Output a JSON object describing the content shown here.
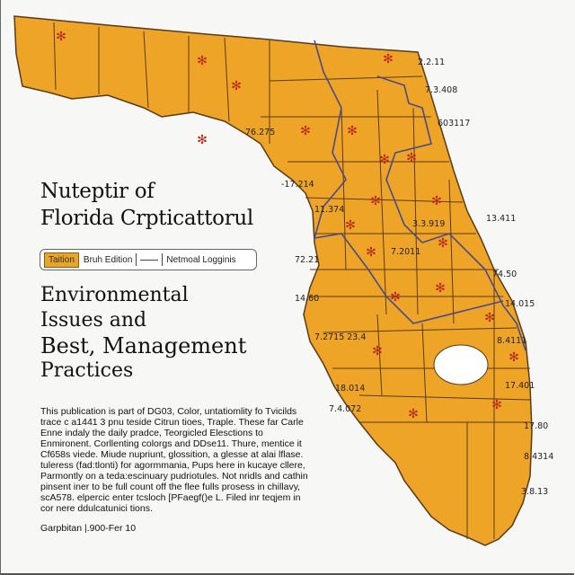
{
  "title": {
    "line1": "Nuteptir of",
    "line2": "Florida Crpticattorul"
  },
  "edition_bar": {
    "tag": "Taition",
    "edition": "Bruh Edition",
    "series": "Netmoal Logginis"
  },
  "subtitle": {
    "line1": "Environmental",
    "line2": "Issues and",
    "line3": "Best, Management",
    "line4": "Practices"
  },
  "body_text": "This publication is part of DG03, Color, untatiomlity fo Tvicilds trace c a1441 3 pnu teside Citrun tioes, Traple. These far Carle Enne indaly the daily pradce, Teorgicled Elesctions to Enmironent. Corllenting colorgs and DDse11. Thure, mentice it Cf658s viede. Miude nupriunt, glossition, a glesse at alai lflase. tuleress (fad:tlonti) for agormmania, Pups here in kucaye cllere, Parmontly on a teda:escinuary pudriotules. Not nridls and cathin pinsent iner to be full count off the flee fulls prosess in chillavy, scA578. elpercic enter tcsloch [PFaegf()e L. Filed inr teqjem in cor nere ddulcatunici tions.",
  "footer": "Garpbitan |.900-Fer 10",
  "map": {
    "fill_color": "#eea426",
    "border_color": "#5a3a1a",
    "river_color": "#4a4a8a",
    "symbol_color": "#b8281a",
    "labels": [
      "2.2.11",
      "7.3.408",
      "603117",
      "76.275",
      "-17.214",
      "11.374",
      "13.411",
      "3.3.919",
      "7.2011",
      "72.21",
      "74.50",
      "14.60",
      "14.015",
      "7.2715 23.4",
      "8.4111",
      "18.014",
      "17.401",
      "7.4.072",
      "17.80",
      "8.4314",
      "3.8.13"
    ]
  }
}
